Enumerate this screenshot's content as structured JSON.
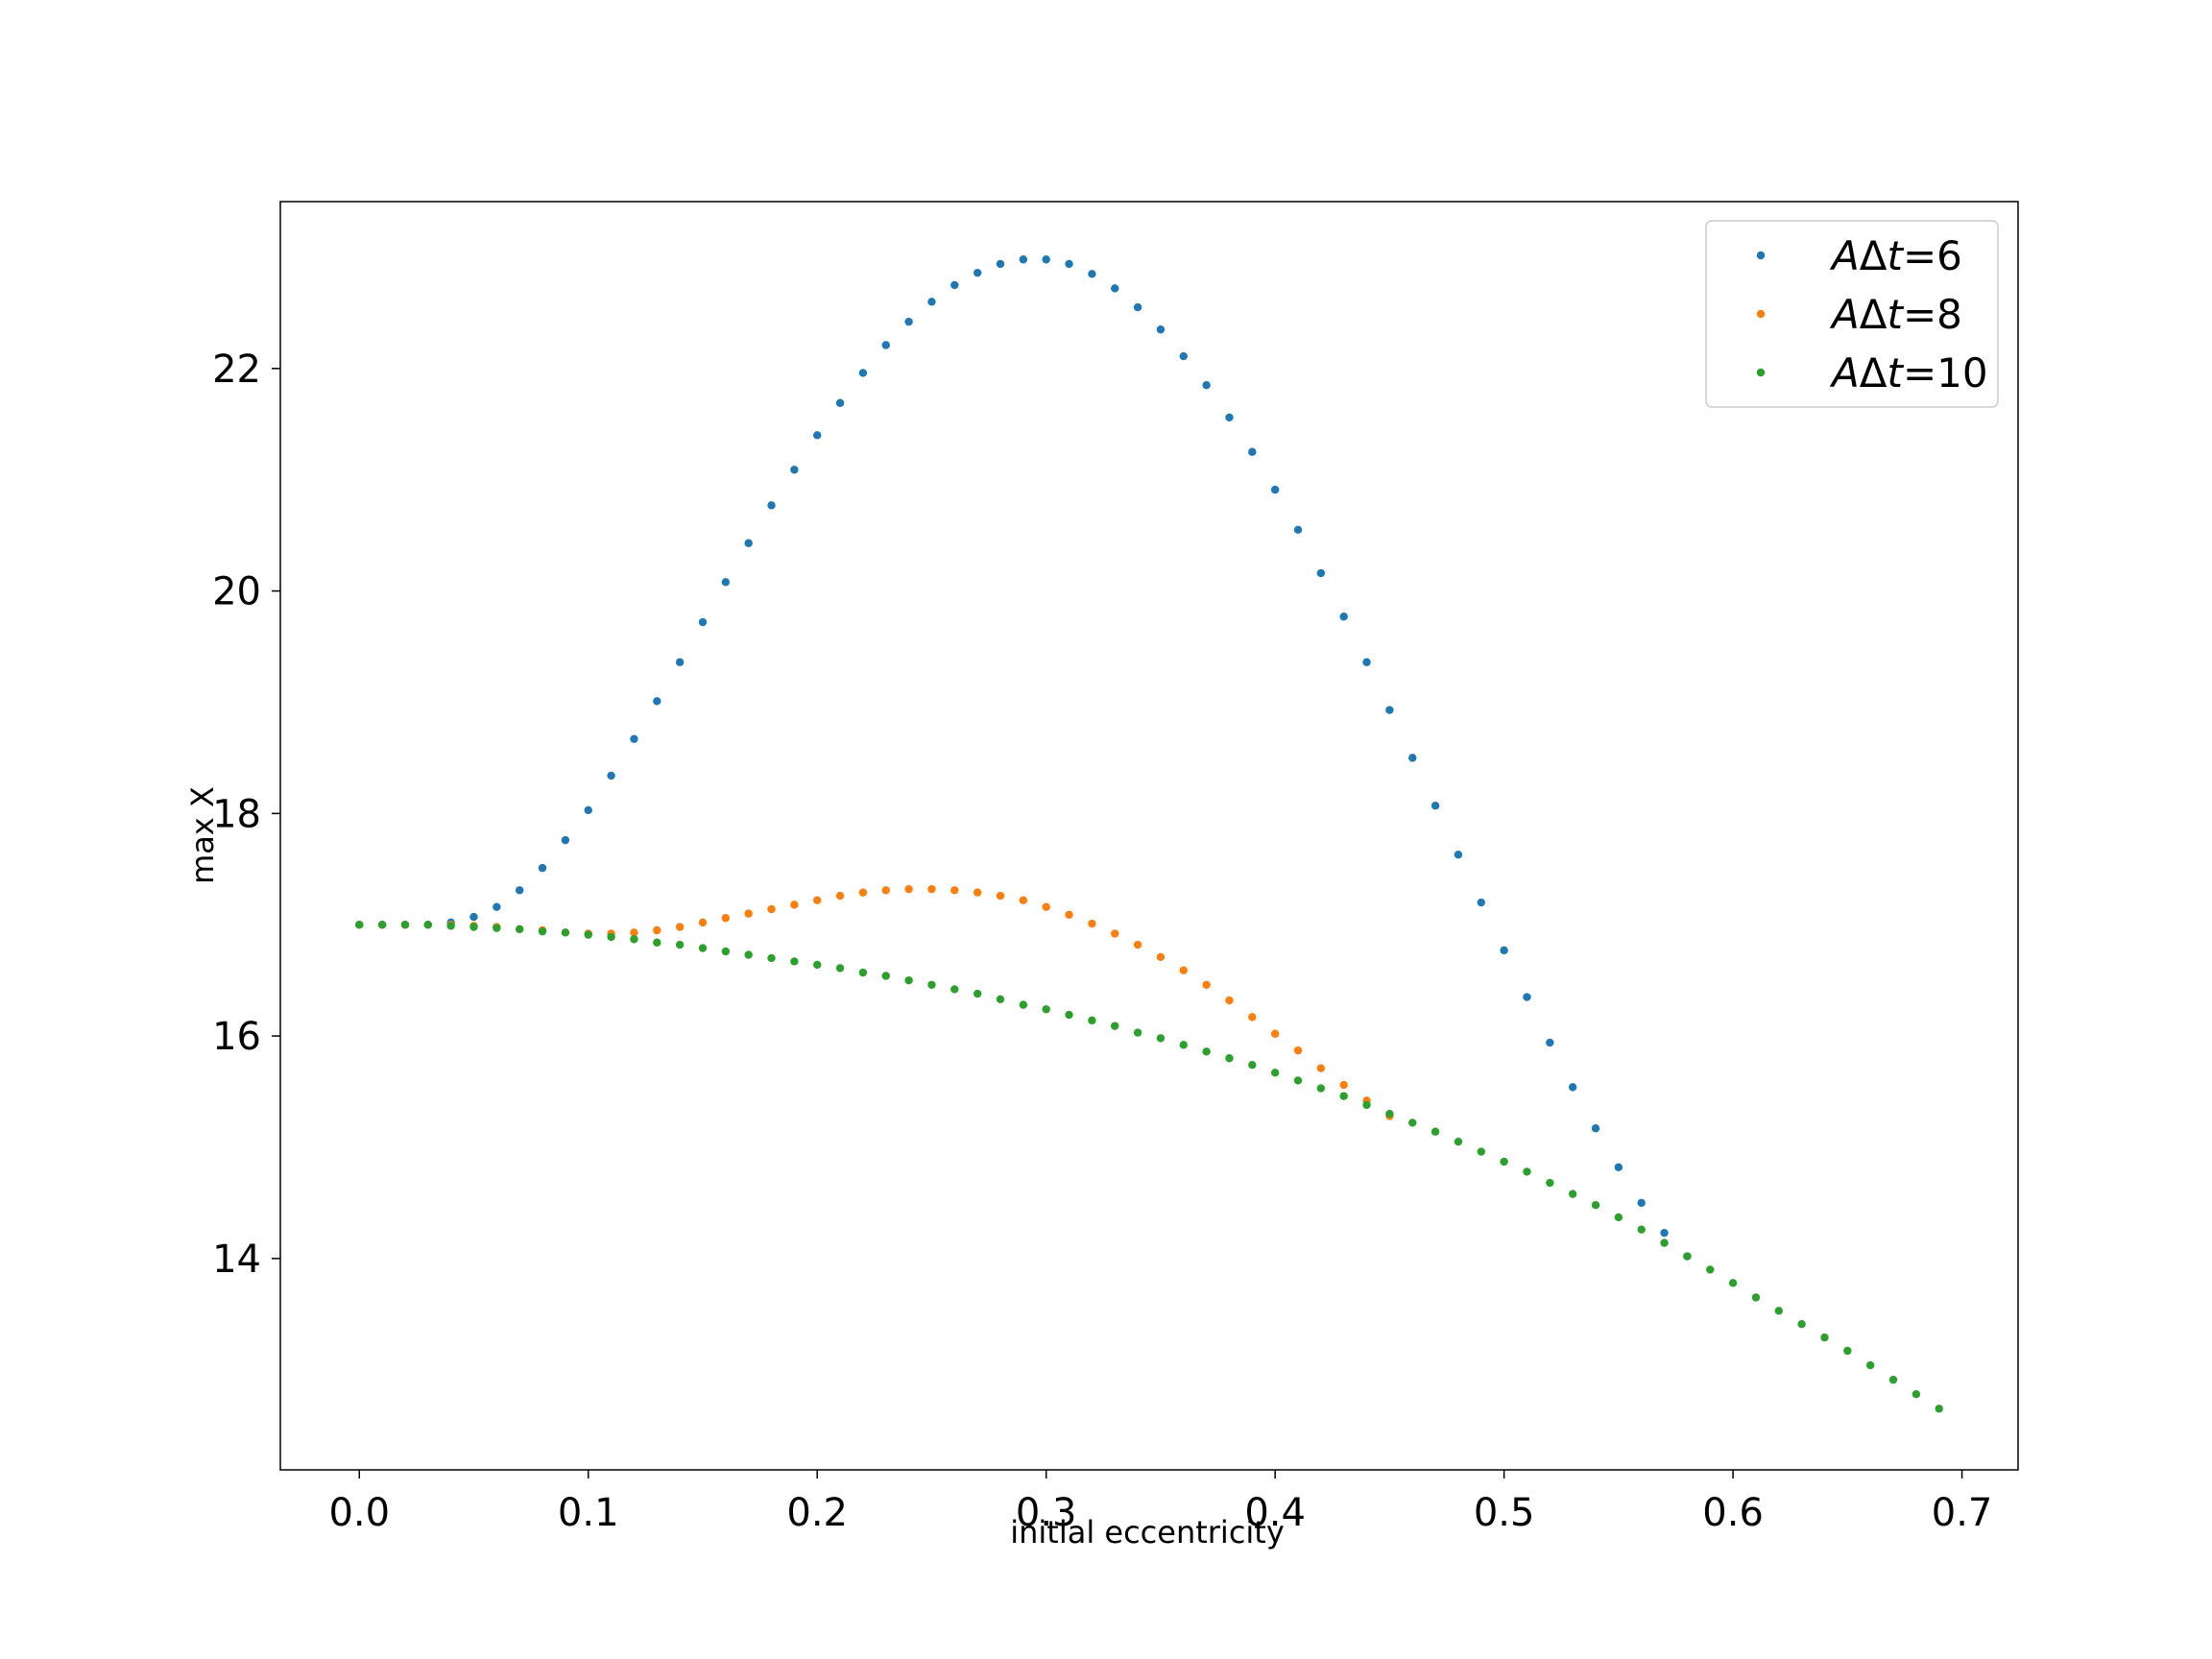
{
  "chart_data": {
    "type": "scatter",
    "title": "",
    "xlabel": "initial eccentricity",
    "ylabel": "max X",
    "xlim": [
      -0.0345,
      0.7245
    ],
    "ylim": [
      12.1,
      23.5
    ],
    "xticks": [
      0.0,
      0.1,
      0.2,
      0.3,
      0.4,
      0.5,
      0.6,
      0.7
    ],
    "xtick_labels": [
      "0.0",
      "0.1",
      "0.2",
      "0.3",
      "0.4",
      "0.5",
      "0.6",
      "0.7"
    ],
    "yticks": [
      14,
      16,
      18,
      20,
      22
    ],
    "ytick_labels": [
      "14",
      "16",
      "18",
      "20",
      "22"
    ],
    "grid": false,
    "legend_position": "top-right",
    "series": [
      {
        "name_parts": [
          "A",
          "Δ",
          "t",
          "=6"
        ],
        "color": "#1f77b4",
        "x": [
          0.0,
          0.01,
          0.02,
          0.03,
          0.04,
          0.05,
          0.06,
          0.07,
          0.08,
          0.09,
          0.1,
          0.11,
          0.12,
          0.13,
          0.14,
          0.15,
          0.16,
          0.17,
          0.18,
          0.19,
          0.2,
          0.21,
          0.22,
          0.23,
          0.24,
          0.25,
          0.26,
          0.27,
          0.28,
          0.29,
          0.3,
          0.31,
          0.32,
          0.33,
          0.34,
          0.35,
          0.36,
          0.37,
          0.38,
          0.39,
          0.4,
          0.41,
          0.42,
          0.43,
          0.44,
          0.45,
          0.46,
          0.47,
          0.48,
          0.49,
          0.5,
          0.51,
          0.52,
          0.53,
          0.54,
          0.55,
          0.56,
          0.57,
          0.58
        ],
        "y": [
          17.0,
          17.0,
          17.0,
          17.0,
          17.02,
          17.07,
          17.16,
          17.31,
          17.51,
          17.76,
          18.03,
          18.34,
          18.67,
          19.01,
          19.36,
          19.72,
          20.08,
          20.43,
          20.77,
          21.09,
          21.4,
          21.69,
          21.96,
          22.21,
          22.42,
          22.6,
          22.75,
          22.86,
          22.94,
          22.98,
          22.98,
          22.94,
          22.85,
          22.72,
          22.55,
          22.35,
          22.11,
          21.85,
          21.56,
          21.25,
          20.91,
          20.55,
          20.16,
          19.77,
          19.36,
          18.93,
          18.5,
          18.07,
          17.63,
          17.2,
          16.77,
          16.35,
          15.94,
          15.54,
          15.17,
          14.82,
          14.5,
          14.23,
          14.02
        ]
      },
      {
        "name_parts": [
          "A",
          "Δ",
          "t",
          "=8"
        ],
        "color": "#ff7f0e",
        "x": [
          0.0,
          0.01,
          0.02,
          0.03,
          0.04,
          0.05,
          0.06,
          0.07,
          0.08,
          0.09,
          0.1,
          0.11,
          0.12,
          0.13,
          0.14,
          0.15,
          0.16,
          0.17,
          0.18,
          0.19,
          0.2,
          0.21,
          0.22,
          0.23,
          0.24,
          0.25,
          0.26,
          0.27,
          0.28,
          0.29,
          0.3,
          0.31,
          0.32,
          0.33,
          0.34,
          0.35,
          0.36,
          0.37,
          0.38,
          0.39,
          0.4,
          0.41,
          0.42,
          0.43,
          0.44,
          0.45
        ],
        "y": [
          17.0,
          17.0,
          17.0,
          17.0,
          17.0,
          16.99,
          16.98,
          16.96,
          16.95,
          16.93,
          16.92,
          16.92,
          16.93,
          16.95,
          16.98,
          17.02,
          17.06,
          17.1,
          17.14,
          17.18,
          17.22,
          17.26,
          17.29,
          17.31,
          17.32,
          17.32,
          17.31,
          17.29,
          17.26,
          17.22,
          17.16,
          17.09,
          17.01,
          16.92,
          16.82,
          16.71,
          16.59,
          16.46,
          16.32,
          16.17,
          16.02,
          15.87,
          15.71,
          15.56,
          15.42,
          15.28
        ]
      },
      {
        "name_parts": [
          "A",
          "Δ",
          "t",
          "=10"
        ],
        "color": "#2ca02c",
        "x": [
          0.0,
          0.01,
          0.02,
          0.03,
          0.04,
          0.05,
          0.06,
          0.07,
          0.08,
          0.09,
          0.1,
          0.11,
          0.12,
          0.13,
          0.14,
          0.15,
          0.16,
          0.17,
          0.18,
          0.19,
          0.2,
          0.21,
          0.22,
          0.23,
          0.24,
          0.25,
          0.26,
          0.27,
          0.28,
          0.29,
          0.3,
          0.31,
          0.32,
          0.33,
          0.34,
          0.35,
          0.36,
          0.37,
          0.38,
          0.39,
          0.4,
          0.41,
          0.42,
          0.43,
          0.44,
          0.45,
          0.46,
          0.47,
          0.48,
          0.49,
          0.5,
          0.51,
          0.52,
          0.53,
          0.54,
          0.55,
          0.56,
          0.57,
          0.58,
          0.59,
          0.6,
          0.61,
          0.62,
          0.63,
          0.64,
          0.65,
          0.66,
          0.67,
          0.68,
          0.69
        ],
        "y": [
          17.0,
          17.0,
          17.0,
          17.0,
          16.99,
          16.98,
          16.97,
          16.96,
          16.94,
          16.93,
          16.91,
          16.89,
          16.87,
          16.84,
          16.82,
          16.79,
          16.76,
          16.73,
          16.7,
          16.67,
          16.64,
          16.61,
          16.57,
          16.54,
          16.5,
          16.46,
          16.42,
          16.38,
          16.33,
          16.28,
          16.24,
          16.19,
          16.14,
          16.09,
          16.03,
          15.98,
          15.92,
          15.86,
          15.8,
          15.74,
          15.67,
          15.6,
          15.53,
          15.46,
          15.38,
          15.3,
          15.22,
          15.14,
          15.05,
          14.96,
          14.87,
          14.78,
          14.68,
          14.58,
          14.48,
          14.37,
          14.26,
          14.14,
          14.02,
          13.9,
          13.78,
          13.65,
          13.53,
          13.41,
          13.29,
          13.17,
          13.04,
          12.91,
          12.78,
          12.65
        ]
      }
    ]
  }
}
